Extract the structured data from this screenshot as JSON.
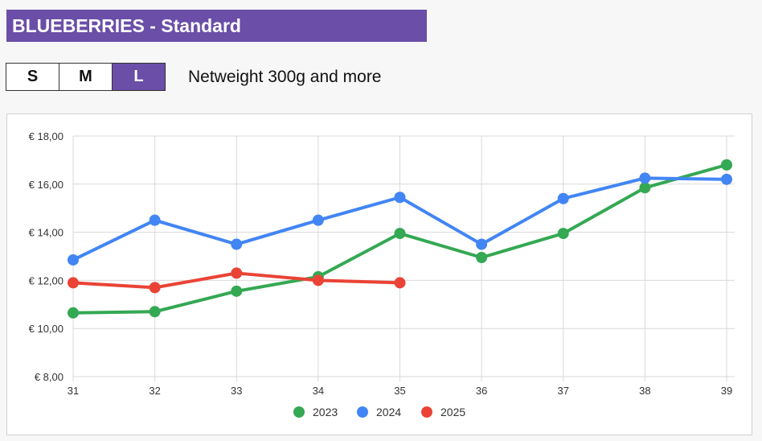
{
  "header": {
    "title": "BLUEBERRIES - Standard",
    "subtitle": "Netweight 300g and more",
    "title_color": "#6a4ea8"
  },
  "size_tabs": [
    {
      "label": "S",
      "active": false
    },
    {
      "label": "M",
      "active": false
    },
    {
      "label": "L",
      "active": true
    }
  ],
  "chart_data": {
    "type": "line",
    "x": [
      31,
      32,
      33,
      34,
      35,
      36,
      37,
      38,
      39
    ],
    "xticklabels": [
      "31",
      "32",
      "33",
      "34",
      "35",
      "36",
      "37",
      "38",
      "39"
    ],
    "ylim": [
      8,
      18
    ],
    "yticks": [
      8,
      10,
      12,
      14,
      16,
      18
    ],
    "yticklabels": [
      "€ 8,00",
      "€ 10,00",
      "€ 12,00",
      "€ 14,00",
      "€ 16,00",
      "€ 18,00"
    ],
    "grid": true,
    "legend_position": "bottom",
    "series": [
      {
        "name": "2023",
        "color": "#34a853",
        "values": [
          10.65,
          10.7,
          11.55,
          12.15,
          13.95,
          12.95,
          13.95,
          15.85,
          16.8
        ]
      },
      {
        "name": "2024",
        "color": "#4285f4",
        "values": [
          12.85,
          14.5,
          13.5,
          14.5,
          15.45,
          13.5,
          15.4,
          16.25,
          16.2
        ]
      },
      {
        "name": "2025",
        "color": "#ea4335",
        "values": [
          11.9,
          11.7,
          12.3,
          12.0,
          11.9,
          null,
          null,
          null,
          null
        ]
      }
    ]
  }
}
